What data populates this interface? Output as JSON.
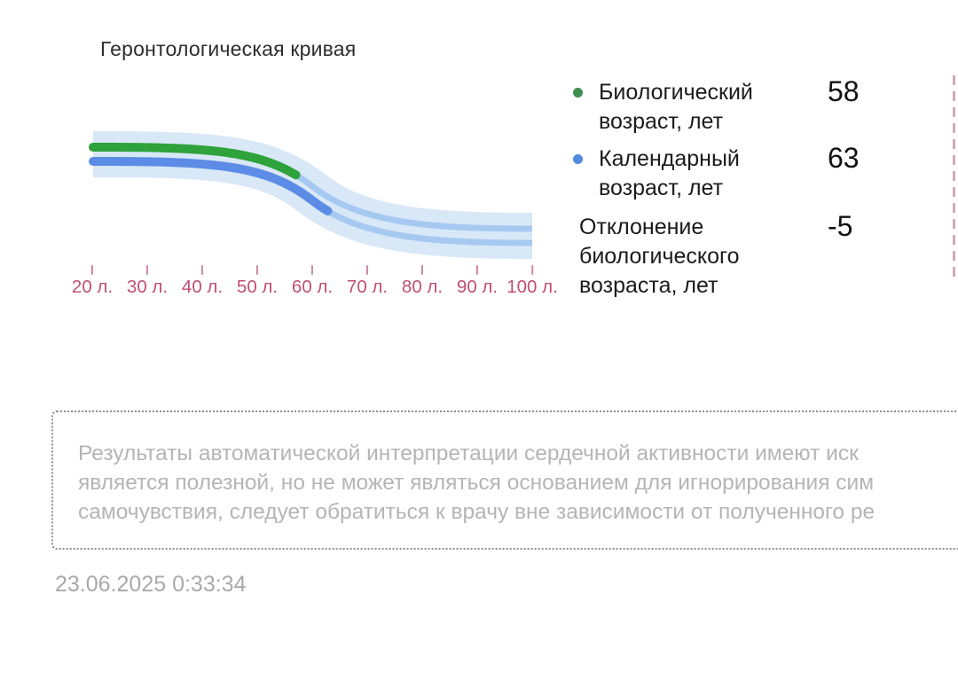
{
  "page": {
    "title": "Геронтологическая кривая",
    "timestamp": "23.06.2025 0:33:34"
  },
  "chart_data": {
    "type": "line",
    "title": "Геронтологическая кривая",
    "x_ticks": [
      "20 л.",
      "30 л.",
      "40 л.",
      "50 л.",
      "60 л.",
      "70 л.",
      "80 л.",
      "90 л.",
      "100 л."
    ],
    "x_axis_years": [
      20,
      30,
      40,
      50,
      60,
      70,
      80,
      90,
      100
    ],
    "band_color": "#d9e8f7",
    "corridor_line_color": "#a6c9f2",
    "axis_tick_color": "#cd85a5",
    "axis_label_color": "#bf4f76",
    "series": [
      {
        "name": "Биологический возраст, лет",
        "color": "#2ea23b",
        "value": 58,
        "starts_at_years": 20,
        "ends_at_years": 58
      },
      {
        "name": "Календарный возраст, лет",
        "color": "#5c8ce6",
        "value": 63,
        "starts_at_years": 20,
        "ends_at_years": 63
      }
    ],
    "deviation": {
      "label": "Отклонение биологического возраста, лет",
      "value": -5
    },
    "shape": "descending sigmoid band from upper-left to lower-right"
  },
  "legend": {
    "rows": [
      {
        "dot_color": "#3f8e4f",
        "line1": "Биологический",
        "line2": "возраст, лет",
        "value": "58"
      },
      {
        "dot_color": "#4f8ce0",
        "line1": "Календарный",
        "line2": "возраст, лет",
        "value": "63"
      },
      {
        "line1": "Отклонение",
        "line2": "биологического",
        "line3": "возраста, лет",
        "value": "-5"
      }
    ]
  },
  "disclaimer": {
    "lines": [
      "Результаты автоматической интерпретации сердечной активности имеют иск",
      "является полезной, но не может являться основанием для игнорирования сим",
      "самочувствия, следует обратиться к врачу вне зависимости от полученного ре"
    ]
  }
}
